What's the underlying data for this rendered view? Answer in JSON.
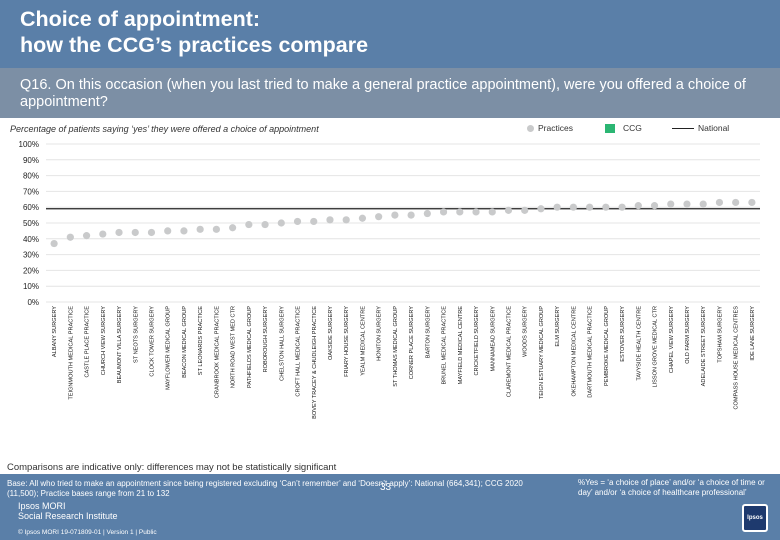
{
  "header": {
    "title": "Choice of appointment:\nhow the CCG’s practices compare",
    "question": "Q16. On this occasion (when you last tried to make a general practice appointment), were you offered a choice of appointment?"
  },
  "subtitle": "Percentage of patients saying ‘yes’ they were offered a choice of appointment",
  "legend": {
    "practices": "Practices",
    "ccg": "CCG",
    "national": "National"
  },
  "colors": {
    "practice": "#c9cacb",
    "ccg": "#2bb673",
    "national": "#222222"
  },
  "chart_data": {
    "type": "scatter",
    "ylim": [
      0,
      100
    ],
    "yticks": [
      "0%",
      "10%",
      "20%",
      "30%",
      "40%",
      "50%",
      "60%",
      "70%",
      "80%",
      "90%",
      "100%"
    ],
    "national": 59,
    "categories": [
      "ALBANY SURGERY",
      "TEIGNMOUTH MEDICAL PRACTICE",
      "CASTLE PLACE PRACTICE",
      "CHURCH VIEW SURGERY",
      "BEAUMONT VILLA SURGERY",
      "ST NEOTS SURGERY",
      "CLOCK TOWER SURGERY",
      "MAYFLOWER MEDICAL GROUP",
      "BEACON MEDICAL GROUP",
      "ST LEONARDS PRACTICE",
      "CRANBROOK MEDICAL PRACTICE",
      "NORTH ROAD WEST MED CTR",
      "PATHFIELDS MEDICAL GROUP",
      "ROBOROUGH SURGERY",
      "CHELSTON HALL SURGERY",
      "CROFT HALL MEDICAL PRACTICE",
      "BOVEY TRACEY & CHUDLEIGH PRACTICE",
      "OAKSIDE SURGERY",
      "FRIARY HOUSE SURGERY",
      "YEALM MEDICAL CENTRE",
      "HONITON SURGERY",
      "ST THOMAS MEDICAL GROUP",
      "CORNER PLACE SURGERY",
      "BARTON SURGERY",
      "BRUNEL MEDICAL PRACTICE",
      "MAYFIELD MEDICAL CENTRE",
      "CRICKETFIELD SURGERY",
      "MANNAMEAD SURGERY",
      "CLAREMONT MEDICAL PRACTICE",
      "WOODS SURGERY",
      "TEIGN ESTUARY MEDICAL GROUP",
      "ELM SURGERY",
      "OKEHAMPTON MEDICAL CENTRE",
      "DARTMOUTH MEDICAL PRACTICE",
      "PEMBROKE MEDICAL GROUP",
      "ESTOVER SURGERY",
      "TAVYSIDE HEALTH CENTRE",
      "LISSON GROVE MEDICAL CTR",
      "CHAPEL VIEW SURGERY",
      "OLD FARM SURGERY",
      "ADELAIDE STREET SURGERY",
      "TOPSHAM SURGERY",
      "COMPASS HOUSE MEDICAL CENTRES",
      "IDE LANE SURGERY"
    ],
    "values": [
      37,
      41,
      42,
      43,
      44,
      44,
      44,
      45,
      45,
      46,
      46,
      47,
      49,
      49,
      50,
      51,
      51,
      52,
      52,
      53,
      54,
      55,
      55,
      56,
      57,
      57,
      57,
      57,
      58,
      58,
      59,
      60,
      60,
      60,
      60,
      60,
      61,
      61,
      62,
      62,
      62,
      63,
      63,
      63
    ]
  },
  "caveat": "Comparisons are indicative only: differences may not be statistically significant",
  "footer": {
    "base_note": "Base: All who tried to make an appointment since being registered excluding ‘Can’t remember’ and ‘Doesn’t apply’: National (664,341); CCG 2020 (11,500); Practice bases range from 21 to 132",
    "yes_note": "%Yes = ‘a choice of place’ and/or ‘a choice of time or day’ and/or ‘a choice of healthcare professional’",
    "page_number": "33",
    "logo_text": "Ipsos MORI\nSocial Research Institute",
    "copyright": "© Ipsos MORI    19-071809-01 | Version 1 | Public",
    "logo_mark": "Ipsos"
  }
}
